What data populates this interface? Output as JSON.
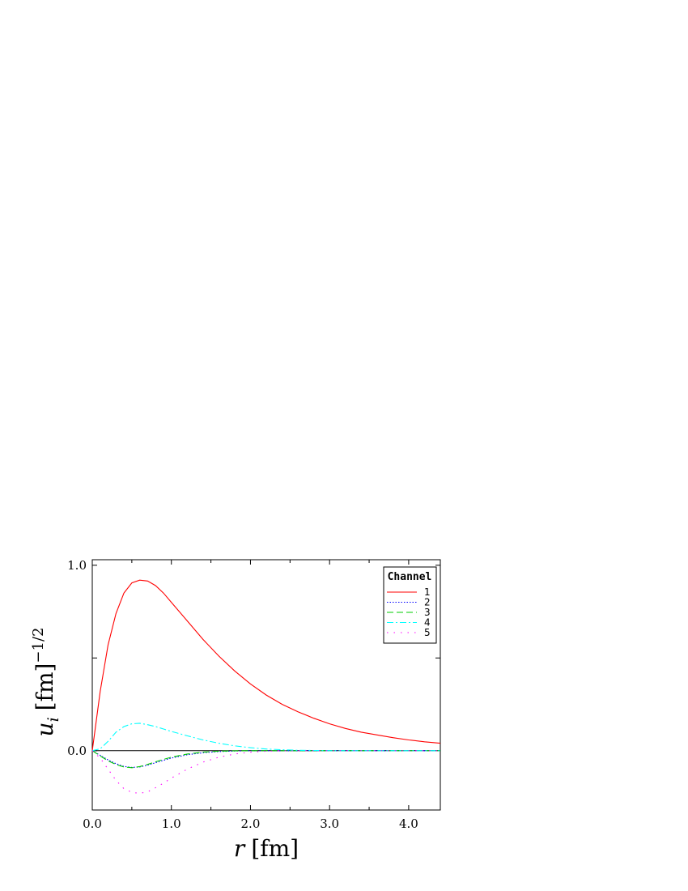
{
  "chart_data": {
    "type": "line",
    "xlabel": {
      "var": "r",
      "unit": "[fm]"
    },
    "ylabel": {
      "var": "u",
      "sub": "i",
      "unit": "[fm]",
      "sup": "−1/2"
    },
    "xlim": [
      0,
      4.4
    ],
    "ylim": [
      -0.32,
      1.03
    ],
    "xticks": [
      0.0,
      1.0,
      2.0,
      3.0,
      4.0
    ],
    "xtick_labels": [
      "0.0",
      "1.0",
      "2.0",
      "3.0",
      "4.0"
    ],
    "yticks": [
      0.0,
      1.0
    ],
    "ytick_labels": [
      "0.0",
      "1.0"
    ],
    "zero_line": true,
    "grid": false,
    "legend": {
      "title": "Channel",
      "position": "top-right"
    },
    "x": [
      0.0,
      0.1,
      0.2,
      0.3,
      0.4,
      0.5,
      0.6,
      0.7,
      0.8,
      0.9,
      1.0,
      1.2,
      1.4,
      1.6,
      1.8,
      2.0,
      2.2,
      2.4,
      2.6,
      2.8,
      3.0,
      3.2,
      3.4,
      3.6,
      3.8,
      4.0,
      4.2,
      4.4
    ],
    "series": [
      {
        "name": "1",
        "color": "#ff0000",
        "dash": "solid",
        "values": [
          0.0,
          0.32,
          0.57,
          0.74,
          0.85,
          0.905,
          0.92,
          0.915,
          0.89,
          0.85,
          0.8,
          0.7,
          0.6,
          0.51,
          0.43,
          0.36,
          0.3,
          0.25,
          0.21,
          0.175,
          0.145,
          0.12,
          0.1,
          0.085,
          0.07,
          0.058,
          0.048,
          0.04
        ]
      },
      {
        "name": "2",
        "color": "#0000ff",
        "dash": "dotted",
        "values": [
          0.0,
          -0.025,
          -0.05,
          -0.07,
          -0.085,
          -0.09,
          -0.088,
          -0.078,
          -0.065,
          -0.052,
          -0.04,
          -0.022,
          -0.011,
          -0.005,
          -0.002,
          0.0,
          0.0,
          0.0,
          0.0,
          0.0,
          0.0,
          0.0,
          0.0,
          0.0,
          0.0,
          0.0,
          0.0,
          0.0
        ]
      },
      {
        "name": "3",
        "color": "#00cc00",
        "dash": "dashed",
        "values": [
          0.0,
          -0.028,
          -0.055,
          -0.075,
          -0.088,
          -0.092,
          -0.086,
          -0.074,
          -0.06,
          -0.047,
          -0.035,
          -0.018,
          -0.008,
          -0.003,
          -0.001,
          0.0,
          0.0,
          0.0,
          0.0,
          0.0,
          0.0,
          0.0,
          0.0,
          0.0,
          0.0,
          0.0,
          0.0,
          0.0
        ]
      },
      {
        "name": "4",
        "color": "#00ffff",
        "dash": "dashdot",
        "values": [
          0.0,
          0.01,
          0.05,
          0.1,
          0.13,
          0.145,
          0.148,
          0.14,
          0.13,
          0.117,
          0.104,
          0.08,
          0.058,
          0.04,
          0.026,
          0.016,
          0.009,
          0.005,
          0.002,
          0.001,
          0.0,
          0.0,
          0.0,
          0.0,
          0.0,
          0.0,
          0.0,
          0.0
        ]
      },
      {
        "name": "5",
        "color": "#ff00ff",
        "dash": "sparse-dotted",
        "values": [
          0.0,
          -0.04,
          -0.1,
          -0.16,
          -0.205,
          -0.225,
          -0.23,
          -0.222,
          -0.2,
          -0.175,
          -0.148,
          -0.1,
          -0.062,
          -0.035,
          -0.018,
          -0.008,
          -0.003,
          -0.001,
          0.0,
          0.0,
          0.0,
          0.0,
          0.0,
          0.0,
          0.0,
          0.0,
          0.0,
          0.0
        ]
      }
    ]
  }
}
